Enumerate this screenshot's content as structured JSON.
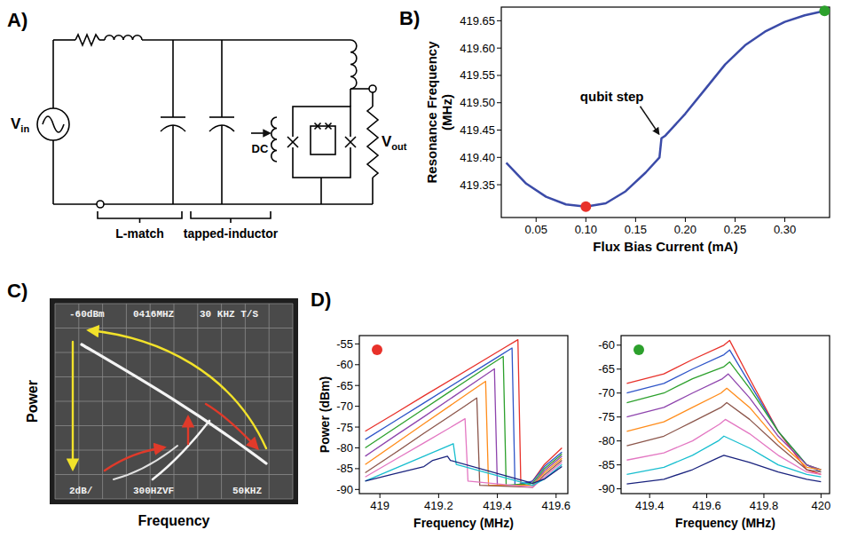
{
  "panels": [
    "A)",
    "B)",
    "C)",
    "D)"
  ],
  "circuit": {
    "source": {
      "text": "V",
      "sub": "in"
    },
    "output": {
      "text": "V",
      "sub": "out"
    },
    "bias": "DC",
    "sections": [
      "L-match",
      "tapped-inductor"
    ]
  },
  "photo": {
    "header": [
      "-60dBm",
      "0416MHZ",
      "30 KHZ T/S"
    ],
    "footer": [
      "2dB/",
      "300HZVF",
      "50KHZ"
    ],
    "xlabel": "Frequency",
    "ylabel": "Power"
  },
  "chart_data": [
    {
      "type": "line",
      "xlabel": "Flux Bias Current (mA)",
      "ylabel": "Resonance Frequency (MHz)",
      "xlim": [
        0.015,
        0.345
      ],
      "ylim": [
        419.29,
        419.675
      ],
      "xticks": [
        0.05,
        {
          "value": 0.1,
          "label": "0.10"
        },
        0.15,
        {
          "value": 0.2,
          "label": "0.20"
        },
        0.25,
        {
          "value": 0.3,
          "label": "0.30"
        }
      ],
      "yticks": [
        419.35,
        {
          "value": 419.4,
          "label": "419.40"
        },
        419.45,
        {
          "value": 419.5,
          "label": "419.50"
        },
        419.55,
        {
          "value": 419.6,
          "label": "419.60"
        },
        419.65
      ],
      "series": [
        {
          "color": "#3b4ba8",
          "x": [
            0.02,
            0.04,
            0.06,
            0.08,
            0.1,
            0.12,
            0.14,
            0.16,
            0.174,
            0.176,
            0.18,
            0.2,
            0.22,
            0.24,
            0.26,
            0.28,
            0.3,
            0.32,
            0.34
          ],
          "values": [
            419.39,
            419.352,
            419.328,
            419.314,
            419.31,
            419.316,
            419.338,
            419.372,
            419.4,
            419.435,
            419.44,
            419.48,
            419.525,
            419.57,
            419.605,
            419.63,
            419.648,
            419.66,
            419.668
          ]
        },
        {
          "type": "scatter",
          "marker": "circle",
          "color": "#e8312a",
          "x": [
            0.1
          ],
          "values": [
            419.31
          ]
        },
        {
          "type": "scatter",
          "marker": "circle",
          "color": "#2ca02c",
          "x": [
            0.34
          ],
          "values": [
            419.668
          ]
        }
      ],
      "annotations": [
        {
          "text": "qubit step",
          "x": 0.176,
          "y": 419.435
        }
      ]
    },
    {
      "type": "line",
      "xlabel": "Frequency (MHz)",
      "ylabel": "Power (dBm)",
      "color": "#e8312a",
      "xlim": [
        418.93,
        419.64
      ],
      "ylim": [
        -91,
        -53
      ],
      "xticks": [
        419,
        419.2,
        419.4,
        419.6
      ],
      "yticks": [
        -55,
        -60,
        -65,
        -70,
        -75,
        -80,
        -85,
        -90
      ],
      "series": [
        {
          "color": "#e8312a",
          "x": [
            418.95,
            419.05,
            419.15,
            419.42,
            419.47,
            419.48,
            419.52,
            419.56,
            419.62
          ],
          "values": [
            -76,
            -71.8,
            -67.5,
            -56.1,
            -54,
            -89,
            -88,
            -84,
            -80
          ]
        },
        {
          "color": "#2f55c8",
          "x": [
            418.95,
            419.05,
            419.15,
            419.4,
            419.45,
            419.46,
            419.52,
            419.56,
            419.62
          ],
          "values": [
            -78,
            -73.6,
            -69.2,
            -58.2,
            -56,
            -89,
            -88,
            -84.5,
            -81
          ]
        },
        {
          "color": "#2ca02c",
          "x": [
            418.95,
            419.05,
            419.15,
            419.37,
            419.42,
            419.43,
            419.52,
            419.56,
            419.62
          ],
          "values": [
            -80,
            -75.3,
            -70.6,
            -60.3,
            -58,
            -89,
            -88.5,
            -85,
            -81.5
          ]
        },
        {
          "color": "#8e44ad",
          "x": [
            418.95,
            419.05,
            419.15,
            419.34,
            419.39,
            419.4,
            419.52,
            419.56,
            419.62
          ],
          "values": [
            -82,
            -77.2,
            -72.5,
            -63.4,
            -61,
            -89,
            -89,
            -85.5,
            -82
          ]
        },
        {
          "color": "#ff8c1a",
          "x": [
            418.95,
            419.05,
            419.15,
            419.31,
            419.36,
            419.37,
            419.52,
            419.56,
            419.62
          ],
          "values": [
            -84,
            -79.1,
            -74.2,
            -66.4,
            -64,
            -89,
            -89,
            -86,
            -82.5
          ]
        },
        {
          "color": "#8c564b",
          "x": [
            418.95,
            419.05,
            419.15,
            419.28,
            419.33,
            419.34,
            419.52,
            419.56,
            419.62
          ],
          "values": [
            -86,
            -81.3,
            -76.5,
            -70.4,
            -68,
            -89,
            -89.5,
            -86.5,
            -83
          ]
        },
        {
          "color": "#e377c2",
          "x": [
            418.95,
            419.05,
            419.15,
            419.24,
            419.29,
            419.3,
            419.52,
            419.56,
            419.62
          ],
          "values": [
            -87,
            -82.9,
            -78.8,
            -75.1,
            -73,
            -88,
            -89.5,
            -87,
            -83.5
          ]
        },
        {
          "color": "#17becf",
          "x": [
            418.95,
            419.05,
            419.15,
            419.2,
            419.25,
            419.26,
            419.52,
            419.56,
            419.62
          ],
          "values": [
            -88,
            -85,
            -82,
            -80.5,
            -79,
            -84,
            -89,
            -87.5,
            -84
          ]
        },
        {
          "color": "#1a237e",
          "x": [
            418.95,
            419.05,
            419.15,
            419.18,
            419.23,
            419.24,
            419.52,
            419.56,
            419.62
          ],
          "values": [
            -88,
            -86.2,
            -84.5,
            -83,
            -82,
            -83,
            -88.5,
            -87.5,
            -84.5
          ]
        }
      ]
    },
    {
      "type": "line",
      "xlabel": "Frequency (MHz)",
      "color": "#2ca02c",
      "xlim": [
        419.3,
        420.03
      ],
      "ylim": [
        -91,
        -58
      ],
      "xticks": [
        419.4,
        419.6,
        419.8,
        420
      ],
      "yticks": [
        -60,
        -65,
        -70,
        -75,
        -80,
        -85,
        -90
      ],
      "series": [
        {
          "color": "#e8312a",
          "x": [
            419.32,
            419.45,
            419.55,
            419.66,
            419.68,
            419.75,
            419.85,
            419.95,
            420.0
          ],
          "values": [
            -68,
            -66,
            -63,
            -60,
            -59,
            -67,
            -78,
            -86,
            -87
          ]
        },
        {
          "color": "#2f55c8",
          "x": [
            419.32,
            419.45,
            419.55,
            419.66,
            419.68,
            419.75,
            419.85,
            419.95,
            420.0
          ],
          "values": [
            -70,
            -68,
            -65,
            -62,
            -61,
            -68,
            -78,
            -85,
            -86.5
          ]
        },
        {
          "color": "#2ca02c",
          "x": [
            419.32,
            419.45,
            419.55,
            419.66,
            419.68,
            419.75,
            419.85,
            419.95,
            420.0
          ],
          "values": [
            -72,
            -70,
            -67,
            -64.5,
            -63.5,
            -69,
            -78,
            -85,
            -86
          ]
        },
        {
          "color": "#8e44ad",
          "x": [
            419.32,
            419.45,
            419.55,
            419.655,
            419.675,
            419.75,
            419.85,
            419.95,
            420.0
          ],
          "values": [
            -75,
            -73,
            -70,
            -67,
            -66,
            -71,
            -79,
            -85,
            -86
          ]
        },
        {
          "color": "#ff8c1a",
          "x": [
            419.32,
            419.45,
            419.55,
            419.65,
            419.67,
            419.75,
            419.85,
            419.95,
            420.0
          ],
          "values": [
            -78,
            -76,
            -73,
            -70,
            -69,
            -73,
            -80,
            -85.5,
            -86
          ]
        },
        {
          "color": "#8c564b",
          "x": [
            419.32,
            419.45,
            419.55,
            419.65,
            419.67,
            419.75,
            419.85,
            419.95,
            420.0
          ],
          "values": [
            -81,
            -79,
            -76,
            -73,
            -72,
            -75.5,
            -81,
            -86,
            -86.5
          ]
        },
        {
          "color": "#e377c2",
          "x": [
            419.32,
            419.45,
            419.55,
            419.645,
            419.665,
            419.75,
            419.85,
            419.95,
            420.0
          ],
          "values": [
            -84,
            -82.5,
            -80,
            -76.5,
            -75.5,
            -78.5,
            -83,
            -86.5,
            -87
          ]
        },
        {
          "color": "#17becf",
          "x": [
            419.32,
            419.45,
            419.55,
            419.64,
            419.66,
            419.75,
            419.85,
            419.95,
            420.0
          ],
          "values": [
            -87,
            -85.5,
            -83,
            -80,
            -79,
            -81.5,
            -85,
            -87,
            -87.5
          ]
        },
        {
          "color": "#1a237e",
          "x": [
            419.32,
            419.45,
            419.55,
            419.64,
            419.66,
            419.75,
            419.85,
            419.95,
            420.0
          ],
          "values": [
            -89,
            -88,
            -86,
            -83.5,
            -83,
            -84.5,
            -86.5,
            -88,
            -88.5
          ]
        }
      ]
    }
  ]
}
